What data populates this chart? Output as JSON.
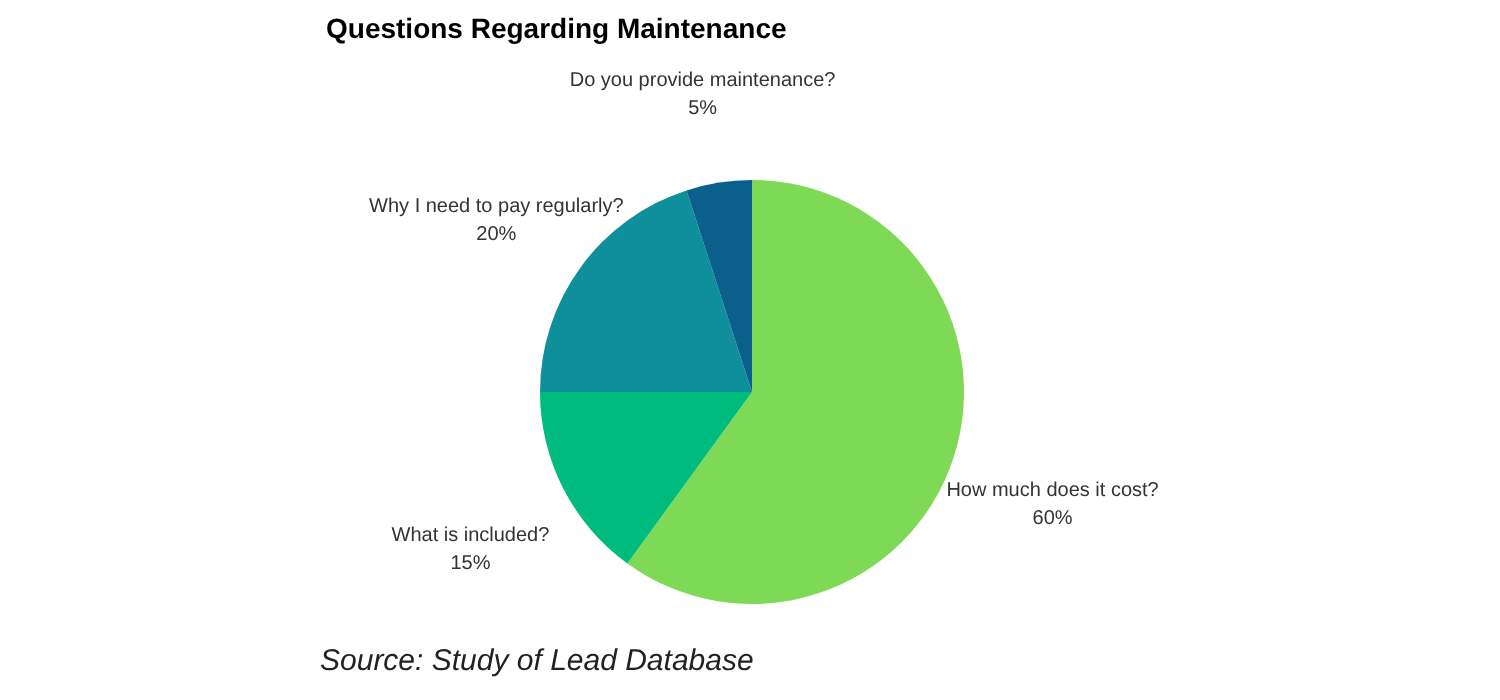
{
  "chart_data": {
    "type": "pie",
    "title": "Questions Regarding Maintenance",
    "categories": [
      "How much does it cost?",
      "What is included?",
      "Why I need to pay regularly?",
      "Do you provide maintenance?"
    ],
    "values": [
      60,
      15,
      20,
      5
    ],
    "value_labels": [
      "60%",
      "15%",
      "20%",
      "5%"
    ],
    "colors": [
      "#7ed957",
      "#00bb7e",
      "#0e8f9b",
      "#0a5f8c"
    ],
    "annotations": [
      "Source: Study of Lead Database"
    ]
  }
}
